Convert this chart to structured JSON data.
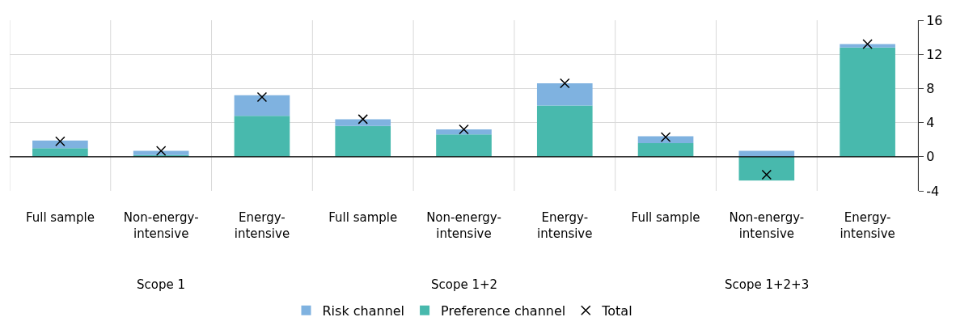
{
  "chart_data": {
    "type": "bar",
    "stacked": true,
    "categories": [
      "Full sample",
      "Non-energy-intensive",
      "Energy-intensive",
      "Full sample",
      "Non-energy-intensive",
      "Energy-intensive",
      "Full sample",
      "Non-energy-intensive",
      "Energy-intensive"
    ],
    "series": [
      {
        "name": "Preference channel",
        "color": "#48b9ad",
        "values": [
          1.0,
          0.2,
          4.8,
          3.6,
          2.6,
          6.0,
          1.6,
          -2.8,
          12.8
        ]
      },
      {
        "name": "Risk channel",
        "color": "#7fb2e0",
        "values": [
          0.9,
          0.5,
          2.4,
          0.8,
          0.6,
          2.6,
          0.8,
          0.7,
          0.4
        ]
      },
      {
        "name": "Total",
        "type": "scatter",
        "marker": "cross",
        "color": "#000000",
        "values": [
          1.8,
          0.7,
          7.0,
          4.4,
          3.2,
          8.6,
          2.3,
          -2.1,
          13.2
        ]
      }
    ],
    "annotations": [
      "Scope 1",
      "Scope 1+2",
      "Scope 1+2+3"
    ],
    "ylim": [
      -4,
      16
    ],
    "yticks": [
      -4,
      0,
      4,
      8,
      12,
      16
    ],
    "grid": true,
    "legend": "bottom"
  }
}
